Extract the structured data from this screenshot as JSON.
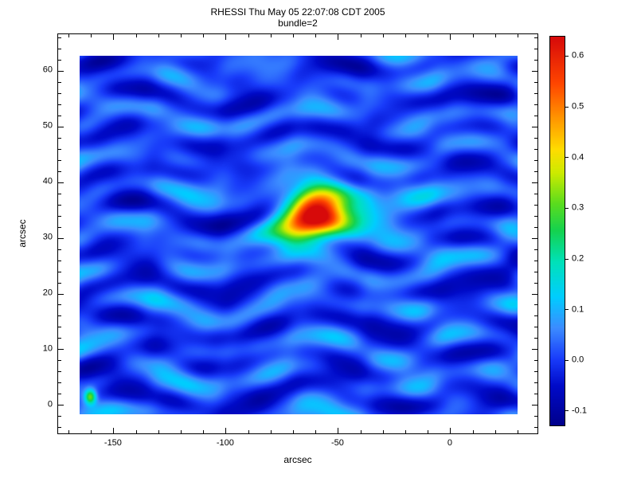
{
  "page": {
    "background": "#ffffff",
    "text_color": "#000000",
    "frame_color": "#000000"
  },
  "chart_data": {
    "type": "heatmap",
    "title": "RHESSI Thu May 05 22:07:08 CDT 2005",
    "subtitle": "bundle=2",
    "xlabel": "arcsec",
    "ylabel": "arcsec",
    "grid": false,
    "xlim": [
      -174.8,
      39.4
    ],
    "ylim": [
      -5.3,
      66.6
    ],
    "image_extent": {
      "x": [
        -165.1,
        30.1
      ],
      "y": [
        -1.7,
        62.6
      ]
    },
    "x_ticks": [
      {
        "v": -150,
        "label": "-150"
      },
      {
        "v": -100,
        "label": "-100"
      },
      {
        "v": -50,
        "label": "-50"
      },
      {
        "v": 0,
        "label": "0"
      }
    ],
    "x_minor_step": 10,
    "y_ticks": [
      {
        "v": 0,
        "label": "0"
      },
      {
        "v": 10,
        "label": "10"
      },
      {
        "v": 20,
        "label": "20"
      },
      {
        "v": 30,
        "label": "30"
      },
      {
        "v": 40,
        "label": "40"
      },
      {
        "v": 50,
        "label": "50"
      },
      {
        "v": 60,
        "label": "60"
      }
    ],
    "y_minor_step": 2,
    "colorbar": {
      "position": "right",
      "vmin": -0.13,
      "vmax": 0.64,
      "ticks": [
        {
          "v": -0.1,
          "label": "-0.1"
        },
        {
          "v": 0.0,
          "label": "0.0"
        },
        {
          "v": 0.1,
          "label": "0.1"
        },
        {
          "v": 0.2,
          "label": "0.2"
        },
        {
          "v": 0.3,
          "label": "0.3"
        },
        {
          "v": 0.4,
          "label": "0.4"
        },
        {
          "v": 0.5,
          "label": "0.5"
        },
        {
          "v": 0.6,
          "label": "0.6"
        }
      ]
    },
    "colormap_stops": [
      {
        "t": 0.0,
        "c": [
          0,
          0,
          140
        ]
      },
      {
        "t": 0.1,
        "c": [
          0,
          10,
          200
        ]
      },
      {
        "t": 0.17,
        "c": [
          25,
          60,
          250
        ]
      },
      {
        "t": 0.25,
        "c": [
          60,
          140,
          255
        ]
      },
      {
        "t": 0.33,
        "c": [
          0,
          205,
          255
        ]
      },
      {
        "t": 0.42,
        "c": [
          0,
          225,
          185
        ]
      },
      {
        "t": 0.5,
        "c": [
          20,
          210,
          80
        ]
      },
      {
        "t": 0.57,
        "c": [
          90,
          220,
          30
        ]
      },
      {
        "t": 0.65,
        "c": [
          205,
          235,
          0
        ]
      },
      {
        "t": 0.71,
        "c": [
          255,
          220,
          0
        ]
      },
      {
        "t": 0.79,
        "c": [
          255,
          150,
          0
        ]
      },
      {
        "t": 0.88,
        "c": [
          255,
          70,
          0
        ]
      },
      {
        "t": 1.0,
        "c": [
          215,
          10,
          10
        ]
      }
    ],
    "field": {
      "description": "blue wavy ripple background with compact bright source",
      "offset": 0.008,
      "waves_canvas_space": [
        {
          "amp": 0.042,
          "kx": 0.0,
          "ky": 0.0806,
          "ph": 0.4,
          "modAmp": 2.2,
          "mkx": 0.0209,
          "mky": 0.0,
          "mph": 1.3
        },
        {
          "amp": 0.038,
          "kx": 0.0,
          "ky": 0.1337,
          "ph": 2.1,
          "modAmp": 1.9,
          "mkx": 0.0299,
          "mky": 0.0,
          "mph": -0.6
        },
        {
          "amp": 0.027,
          "kx": 0.0419,
          "ky": 0.0,
          "ph": 0.9,
          "modAmp": 1.4,
          "mkx": 0.0,
          "mky": 0.0661,
          "mph": 0.3
        },
        {
          "amp": 0.018,
          "kx": 0.0262,
          "ky": 0.0524,
          "ph": 0.0,
          "modAmp": 1.1,
          "mkx": 0.0698,
          "mky": 0.0,
          "mph": 0.0
        },
        {
          "amp": 0.013,
          "kx": 0.012,
          "ky": 0.178,
          "ph": 1.7,
          "modAmp": 1.3,
          "mkx": 0.017,
          "mky": 0.0,
          "mph": 2.4
        }
      ],
      "sources_data_space": [
        {
          "x": -59,
          "y": 35.0,
          "amp": 0.58,
          "sx": 13.5,
          "sy": 4.3,
          "name": "main-peak",
          "peak_value": 0.62
        },
        {
          "x": -69,
          "y": 30.5,
          "amp": 0.2,
          "sx": 14.0,
          "sy": 4.0,
          "name": "southwest-extension"
        },
        {
          "x": -37,
          "y": 34.7,
          "amp": 0.12,
          "sx": 20.0,
          "sy": 5.0,
          "name": "east-halo"
        },
        {
          "x": -160.5,
          "y": 1.5,
          "amp": 0.3,
          "sx": 2.5,
          "sy": 1.3,
          "name": "corner-speck"
        }
      ]
    }
  }
}
